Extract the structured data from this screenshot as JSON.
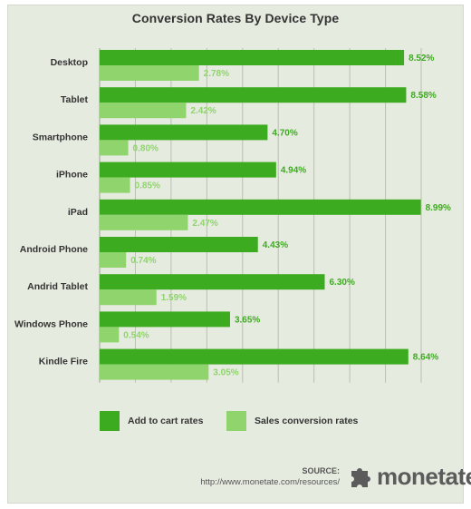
{
  "title": "Conversion Rates By Device Type",
  "colors": {
    "add_to_cart": "#3dab1f",
    "sales_conversion": "#8fd46d",
    "background": "#e6ebe0",
    "grid": "#b9bfb1"
  },
  "chart_data": {
    "type": "bar",
    "orientation": "horizontal",
    "title": "Conversion Rates By Device Type",
    "categories": [
      "Desktop",
      "Tablet",
      "Smartphone",
      "iPhone",
      "iPad",
      "Android Phone",
      "Andrid Tablet",
      "Windows Phone",
      "Kindle Fire"
    ],
    "series": [
      {
        "name": "Add to cart rates",
        "values": [
          8.52,
          8.58,
          4.7,
          4.94,
          8.99,
          4.43,
          6.3,
          3.65,
          8.64
        ],
        "labels": [
          "8.52%",
          "8.58%",
          "4.70%",
          "4.94%",
          "8.99%",
          "4.43%",
          "6.30%",
          "3.65%",
          "8.64%"
        ]
      },
      {
        "name": "Sales conversion rates",
        "values": [
          2.78,
          2.42,
          0.8,
          0.85,
          2.47,
          0.74,
          1.59,
          0.54,
          3.05
        ],
        "labels": [
          "2.78%",
          "2.42%",
          "0.80%",
          "0.85%",
          "2.47%",
          "0.74%",
          "1.59%",
          "0.54%",
          "3.05%"
        ]
      }
    ],
    "xlim": [
      0,
      9
    ],
    "grid": true,
    "legend_position": "bottom-left"
  },
  "legend": [
    {
      "label": "Add to cart rates"
    },
    {
      "label": "Sales conversion rates"
    }
  ],
  "source": {
    "label": "SOURCE:",
    "url": "http://www.monetate.com/resources/"
  },
  "brand": {
    "name": "monetate",
    "logo_icon": "puzzle-piece-icon"
  }
}
